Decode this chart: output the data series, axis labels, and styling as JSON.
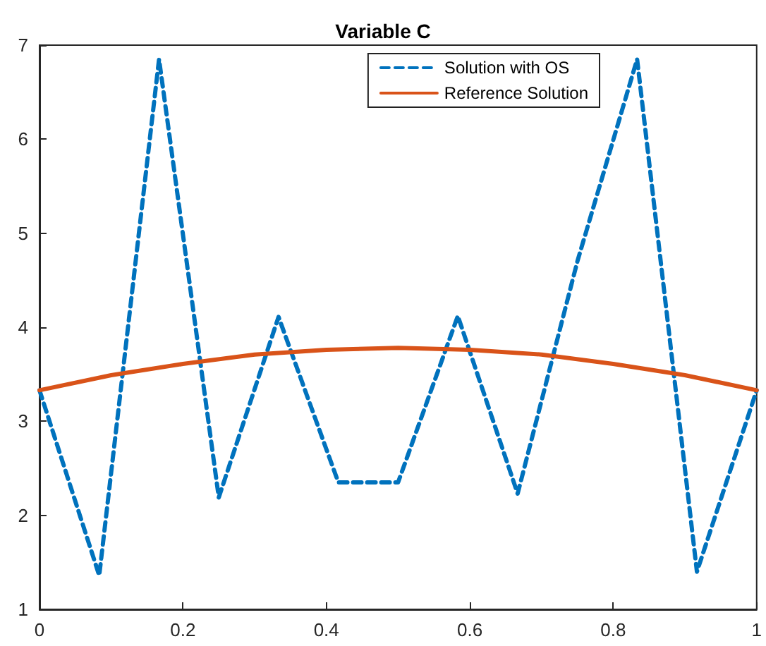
{
  "chart_data": {
    "type": "line",
    "title": "Variable C",
    "xlim": [
      0,
      1
    ],
    "ylim": [
      1,
      7
    ],
    "xticks": [
      0,
      0.2,
      0.4,
      0.6,
      0.8,
      1
    ],
    "yticks": [
      1,
      2,
      3,
      4,
      5,
      6,
      7
    ],
    "grid": false,
    "legend": "top right",
    "marker": "none",
    "series": [
      {
        "name": "Solution with OS",
        "color": "#0072bd",
        "line_style": "dashed",
        "x": [
          0,
          0.0833,
          0.1667,
          0.25,
          0.3333,
          0.4167,
          0.5,
          0.5833,
          0.6667,
          0.75,
          0.8333,
          0.9167,
          1
        ],
        "values": [
          3.33,
          1.36,
          6.85,
          2.19,
          4.11,
          2.35,
          2.35,
          4.12,
          2.23,
          4.7,
          6.85,
          1.4,
          3.33
        ]
      },
      {
        "name": "Reference Solution",
        "color": "#d95319",
        "line_style": "solid",
        "x": [
          0,
          0.1,
          0.2,
          0.3,
          0.4,
          0.5,
          0.6,
          0.7,
          0.8,
          0.9,
          1
        ],
        "values": [
          3.33,
          3.49,
          3.61,
          3.71,
          3.76,
          3.78,
          3.76,
          3.71,
          3.61,
          3.49,
          3.33
        ]
      }
    ]
  }
}
